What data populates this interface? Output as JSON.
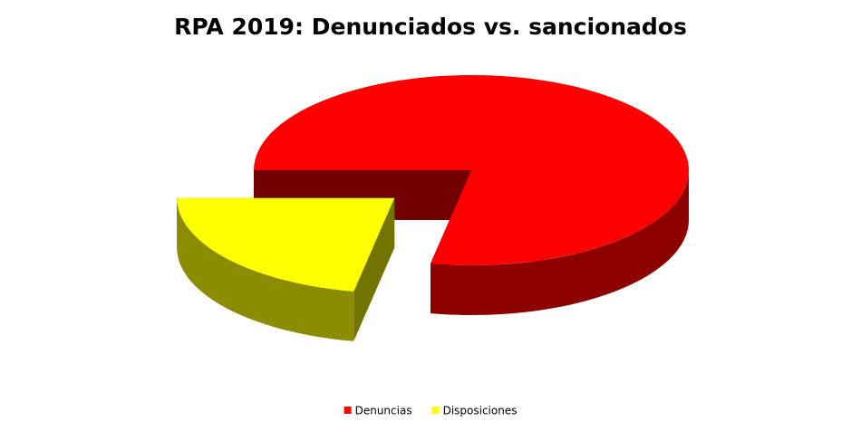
{
  "chart_data": {
    "type": "pie",
    "title": "RPA 2019: Denunciados vs. sancionados",
    "categories": [
      "Denuncias",
      "Disposiciones"
    ],
    "values": [
      78,
      22
    ],
    "colors": [
      "#ff0000",
      "#ffff00"
    ],
    "legend": "bottom"
  }
}
